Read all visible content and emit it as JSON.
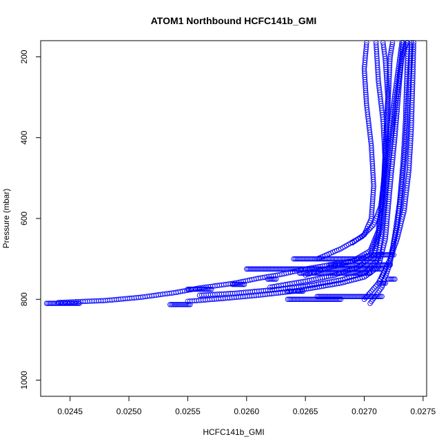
{
  "chart_data": {
    "type": "scatter",
    "title": "ATOM1 Northbound HCFC141b_GMI",
    "xlabel": "HCFC141b_GMI",
    "ylabel": "Pressure (mbar)",
    "xlim": [
      0.02425,
      0.02753
    ],
    "ylim": [
      1040,
      160
    ],
    "y_axis_inverted": true,
    "x_ticks": [
      0.0245,
      0.025,
      0.0255,
      0.026,
      0.0265,
      0.027,
      0.0275
    ],
    "x_tick_labels": [
      "0.0245",
      "0.0250",
      "0.0255",
      "0.0260",
      "0.0265",
      "0.0270",
      "0.0275"
    ],
    "y_ticks": [
      200,
      400,
      600,
      800,
      1000
    ],
    "y_tick_labels": [
      "200",
      "400",
      "600",
      "800",
      "1000"
    ],
    "marker": "open-circle",
    "color": "#0000ff",
    "grid": false,
    "legend": "none",
    "series": [
      {
        "segments": [
          {
            "kind": "flat",
            "p": 810,
            "x0": 0.0243,
            "x1": 0.02458
          },
          {
            "kind": "curve",
            "pts": [
              [
                0.0244,
                808
              ],
              [
                0.0248,
                803
              ],
              [
                0.0251,
                795
              ],
              [
                0.0254,
                783
              ],
              [
                0.0256,
                772
              ],
              [
                0.0259,
                760
              ],
              [
                0.0261,
                748
              ],
              [
                0.0263,
                738
              ],
              [
                0.0265,
                725
              ],
              [
                0.0267,
                715
              ],
              [
                0.0269,
                705
              ],
              [
                0.02705,
                690
              ],
              [
                0.02712,
                640
              ],
              [
                0.02715,
                560
              ],
              [
                0.02718,
                450
              ],
              [
                0.0272,
                330
              ],
              [
                0.02722,
                200
              ],
              [
                0.02724,
                165
              ]
            ]
          },
          {
            "kind": "curve",
            "pts": [
              [
                0.0255,
                805
              ],
              [
                0.0258,
                798
              ],
              [
                0.0261,
                790
              ],
              [
                0.0264,
                780
              ],
              [
                0.0266,
                770
              ],
              [
                0.0268,
                760
              ],
              [
                0.027,
                745
              ],
              [
                0.02712,
                720
              ],
              [
                0.02718,
                650
              ],
              [
                0.02722,
                520
              ],
              [
                0.02726,
                400
              ],
              [
                0.0273,
                260
              ],
              [
                0.02733,
                165
              ]
            ]
          },
          {
            "kind": "curve",
            "pts": [
              [
                0.0256,
                790
              ],
              [
                0.0259,
                785
              ],
              [
                0.0262,
                777
              ],
              [
                0.0265,
                768
              ],
              [
                0.0268,
                752
              ],
              [
                0.027,
                735
              ],
              [
                0.02712,
                700
              ],
              [
                0.02716,
                600
              ],
              [
                0.0272,
                480
              ],
              [
                0.02726,
                330
              ],
              [
                0.02732,
                200
              ],
              [
                0.02736,
                165
              ]
            ]
          },
          {
            "kind": "curve",
            "pts": [
              [
                0.0262,
                770
              ],
              [
                0.0265,
                755
              ],
              [
                0.02675,
                740
              ],
              [
                0.02695,
                720
              ],
              [
                0.02708,
                690
              ],
              [
                0.02714,
                620
              ],
              [
                0.02718,
                500
              ],
              [
                0.02722,
                380
              ],
              [
                0.02728,
                250
              ],
              [
                0.02732,
                165
              ]
            ]
          },
          {
            "kind": "curve",
            "pts": [
              [
                0.0265,
                740
              ],
              [
                0.0267,
                722
              ],
              [
                0.0269,
                705
              ],
              [
                0.02705,
                680
              ],
              [
                0.02712,
                630
              ],
              [
                0.02716,
                540
              ],
              [
                0.02718,
                420
              ],
              [
                0.0272,
                300
              ],
              [
                0.02718,
                210
              ],
              [
                0.02716,
                165
              ]
            ]
          },
          {
            "kind": "curve",
            "pts": [
              [
                0.0266,
                700
              ],
              [
                0.0268,
                675
              ],
              [
                0.02698,
                645
              ],
              [
                0.02708,
                615
              ],
              [
                0.02714,
                570
              ],
              [
                0.02718,
                470
              ],
              [
                0.02716,
                360
              ],
              [
                0.02712,
                260
              ],
              [
                0.0271,
                165
              ]
            ]
          },
          {
            "kind": "curve",
            "pts": [
              [
                0.0269,
                660
              ],
              [
                0.027,
                640
              ],
              [
                0.02706,
                600
              ],
              [
                0.02708,
                520
              ],
              [
                0.02706,
                420
              ],
              [
                0.02702,
                320
              ],
              [
                0.027,
                230
              ],
              [
                0.02702,
                165
              ]
            ]
          },
          {
            "kind": "curve",
            "pts": [
              [
                0.027,
                800
              ],
              [
                0.02712,
                760
              ],
              [
                0.02722,
                700
              ],
              [
                0.02728,
                620
              ],
              [
                0.02732,
                520
              ],
              [
                0.02735,
                420
              ],
              [
                0.02737,
                320
              ],
              [
                0.02739,
                220
              ],
              [
                0.0274,
                165
              ]
            ]
          },
          {
            "kind": "curve",
            "pts": [
              [
                0.02705,
                810
              ],
              [
                0.02715,
                770
              ],
              [
                0.02722,
                710
              ],
              [
                0.02726,
                640
              ],
              [
                0.0273,
                560
              ],
              [
                0.02733,
                460
              ],
              [
                0.02735,
                360
              ],
              [
                0.02736,
                260
              ],
              [
                0.02737,
                165
              ]
            ]
          },
          {
            "kind": "curve",
            "pts": [
              [
                0.02715,
                745
              ],
              [
                0.02722,
                700
              ],
              [
                0.02728,
                650
              ],
              [
                0.02734,
                580
              ],
              [
                0.02738,
                480
              ],
              [
                0.0274,
                380
              ],
              [
                0.02741,
                280
              ],
              [
                0.02742,
                165
              ]
            ]
          },
          {
            "kind": "flat",
            "p": 813,
            "x0": 0.02535,
            "x1": 0.02552
          },
          {
            "kind": "flat",
            "p": 775,
            "x0": 0.0255,
            "x1": 0.0257
          },
          {
            "kind": "flat",
            "p": 763,
            "x0": 0.02588,
            "x1": 0.02598
          },
          {
            "kind": "flat",
            "p": 750,
            "x0": 0.02618,
            "x1": 0.02625
          },
          {
            "kind": "flat",
            "p": 725,
            "x0": 0.026,
            "x1": 0.02715
          },
          {
            "kind": "flat",
            "p": 715,
            "x0": 0.0267,
            "x1": 0.02722
          },
          {
            "kind": "flat",
            "p": 700,
            "x0": 0.0264,
            "x1": 0.02712
          },
          {
            "kind": "flat",
            "p": 735,
            "x0": 0.02645,
            "x1": 0.02705
          },
          {
            "kind": "flat",
            "p": 780,
            "x0": 0.02635,
            "x1": 0.02648
          },
          {
            "kind": "flat",
            "p": 800,
            "x0": 0.02635,
            "x1": 0.0268
          },
          {
            "kind": "flat",
            "p": 793,
            "x0": 0.0266,
            "x1": 0.02715
          },
          {
            "kind": "flat",
            "p": 750,
            "x0": 0.0272,
            "x1": 0.02726
          },
          {
            "kind": "flat",
            "p": 690,
            "x0": 0.02706,
            "x1": 0.02725
          },
          {
            "kind": "flat",
            "p": 760,
            "x0": 0.02712,
            "x1": 0.02718
          }
        ]
      }
    ]
  }
}
